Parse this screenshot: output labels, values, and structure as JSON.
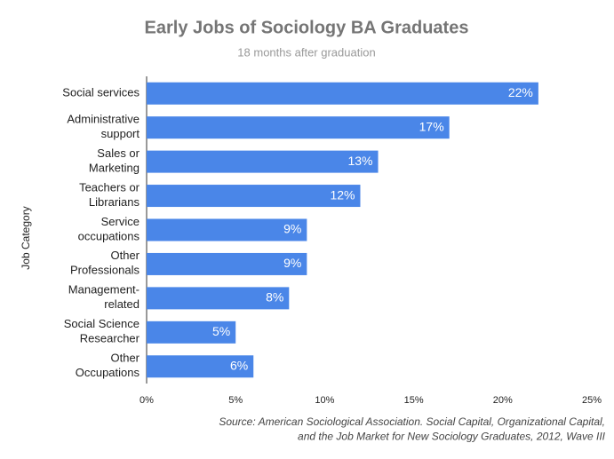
{
  "chart_data": {
    "type": "bar",
    "orientation": "horizontal",
    "title": "Early Jobs of Sociology BA Graduates",
    "subtitle": "18 months after graduation",
    "y_label": "Job Category",
    "categories": [
      "Social services",
      "Administrative\nsupport",
      "Sales or\nMarketing",
      "Teachers or\nLibrarians",
      "Service\noccupations",
      "Other\nProfessionals",
      "Management-\nrelated",
      "Social Science\nResearcher",
      "Other\nOccupations"
    ],
    "values": [
      22,
      17,
      13,
      12,
      9,
      9,
      8,
      5,
      6
    ],
    "value_labels": [
      "22%",
      "17%",
      "13%",
      "12%",
      "9%",
      "9%",
      "8%",
      "5%",
      "6%"
    ],
    "color": "#4a86e8",
    "xlim": [
      0,
      25
    ],
    "xticks": [
      {
        "value": 0,
        "label": "0%"
      },
      {
        "value": 5,
        "label": "5%"
      },
      {
        "value": 10,
        "label": "10%"
      },
      {
        "value": 15,
        "label": "15%"
      },
      {
        "value": 20,
        "label": "20%"
      },
      {
        "value": 25,
        "label": "25%"
      }
    ],
    "grid": false,
    "source": "Source: American Sociological Association. Social Capital, Organizational Capital,\nand the Job Market for New Sociology Graduates, 2012, Wave III"
  }
}
